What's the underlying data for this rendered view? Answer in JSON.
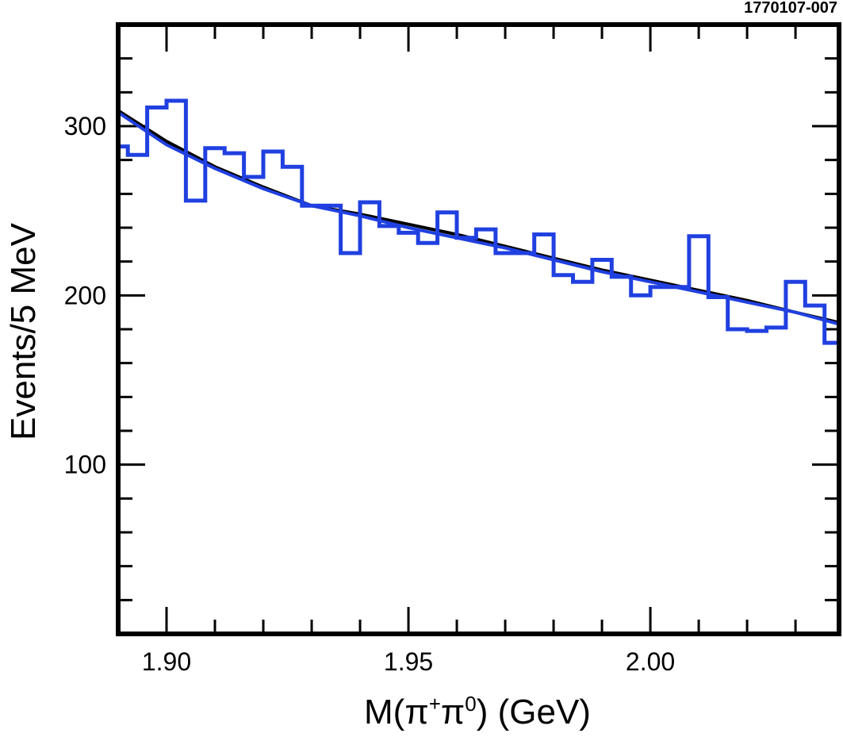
{
  "figure_id": "1770107-007",
  "chart_data": {
    "type": "histogram",
    "title": "",
    "xlabel_parts": [
      "M(",
      "π",
      "+",
      "π",
      "0",
      ") (GeV)"
    ],
    "ylabel": "Events/5 MeV",
    "xlim": [
      1.89,
      2.039
    ],
    "ylim": [
      0,
      360
    ],
    "x_major_ticks": [
      1.9,
      1.95,
      2.0
    ],
    "x_tick_labels": [
      "1.90",
      "1.95",
      "2.00"
    ],
    "x_minor_step": 0.01,
    "y_major_ticks": [
      100,
      200,
      300
    ],
    "y_tick_labels": [
      "100",
      "200",
      "300"
    ],
    "y_minor_step": 20,
    "bin_width": 0.004,
    "bin_low_edges": [
      1.889,
      1.892,
      1.896,
      1.9,
      1.904,
      1.908,
      1.912,
      1.916,
      1.92,
      1.924,
      1.928,
      1.932,
      1.936,
      1.94,
      1.944,
      1.948,
      1.952,
      1.956,
      1.96,
      1.964,
      1.968,
      1.972,
      1.976,
      1.98,
      1.984,
      1.988,
      1.992,
      1.996,
      2.0,
      2.004,
      2.008,
      2.012,
      2.016,
      2.02,
      2.024,
      2.028,
      2.032,
      2.036
    ],
    "bin_counts": [
      288,
      283,
      311,
      315,
      256,
      287,
      284,
      270,
      285,
      276,
      253,
      253,
      225,
      255,
      241,
      237,
      231,
      249,
      234,
      239,
      225,
      225,
      236,
      212,
      208,
      221,
      211,
      200,
      205,
      205,
      235,
      199,
      180,
      179,
      181,
      208,
      194,
      172
    ],
    "fit_curves": [
      {
        "color": "#000000",
        "x": [
          1.889,
          1.9,
          1.91,
          1.92,
          1.93,
          1.94,
          1.95,
          1.96,
          1.97,
          1.98,
          1.99,
          2.0,
          2.01,
          2.02,
          2.03,
          2.039
        ],
        "y": [
          311,
          291,
          276,
          264,
          253,
          248,
          242,
          236,
          229,
          222,
          215,
          209,
          203,
          197,
          190,
          184
        ]
      },
      {
        "color": "#2040e0",
        "x": [
          1.889,
          1.9,
          1.91,
          1.92,
          1.93,
          1.94,
          1.95,
          1.96,
          1.97,
          1.98,
          1.99,
          2.0,
          2.01,
          2.02,
          2.03,
          2.039
        ],
        "y": [
          310,
          289,
          275,
          263,
          253,
          247,
          240,
          234,
          228,
          221,
          214,
          208,
          202,
          196,
          190,
          183
        ]
      }
    ],
    "histogram_color": "#2040e0",
    "grid": false,
    "legend": "none"
  }
}
